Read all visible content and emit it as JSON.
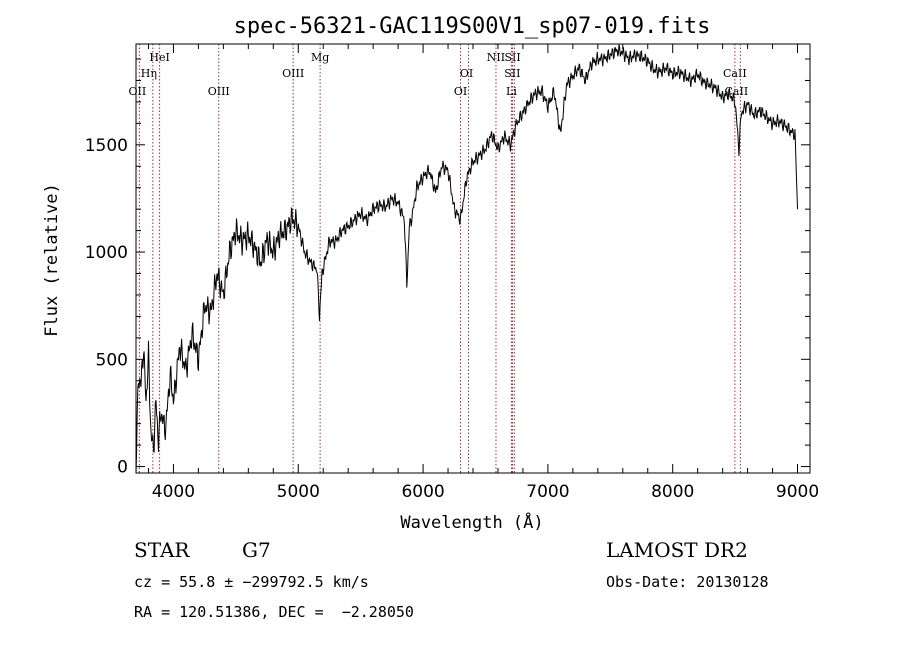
{
  "chart_data": {
    "type": "line",
    "title": "spec-56321-GAC119S00V1_sp07-019.fits",
    "xlabel": "Wavelength (Å)",
    "ylabel": "Flux (relative)",
    "xlim": [
      3700,
      9100
    ],
    "ylim": [
      -30,
      1970
    ],
    "x_ticks": [
      4000,
      5000,
      6000,
      7000,
      8000,
      9000
    ],
    "y_ticks": [
      0,
      500,
      1000,
      1500
    ],
    "grid": false,
    "series": [
      {
        "x": [
          3700,
          3720,
          3740,
          3760,
          3780,
          3800,
          3820,
          3840,
          3860,
          3880,
          3900,
          3920,
          3940,
          3960,
          3980,
          4000,
          4050,
          4100,
          4150,
          4200,
          4250,
          4300,
          4350,
          4400,
          4450,
          4500,
          4550,
          4600,
          4650,
          4700,
          4750,
          4800,
          4850,
          4900,
          4950,
          5000,
          5050,
          5100,
          5150,
          5170,
          5190,
          5210,
          5250,
          5300,
          5350,
          5400,
          5450,
          5500,
          5550,
          5600,
          5650,
          5700,
          5750,
          5800,
          5850,
          5870,
          5890,
          5910,
          5950,
          6000,
          6050,
          6100,
          6150,
          6200,
          6250,
          6300,
          6350,
          6400,
          6450,
          6500,
          6550,
          6600,
          6650,
          6700,
          6750,
          6800,
          6850,
          6900,
          6950,
          7000,
          7050,
          7100,
          7150,
          7200,
          7250,
          7300,
          7350,
          7400,
          7450,
          7500,
          7550,
          7600,
          7650,
          7700,
          7750,
          7800,
          7850,
          7900,
          7950,
          8000,
          8050,
          8100,
          8150,
          8200,
          8250,
          8300,
          8350,
          8400,
          8450,
          8500,
          8530,
          8550,
          8600,
          8650,
          8700,
          8750,
          8800,
          8850,
          8900,
          8950,
          8980,
          9000
        ],
        "y": [
          0,
          420,
          380,
          560,
          300,
          520,
          150,
          80,
          300,
          120,
          260,
          200,
          180,
          350,
          420,
          300,
          560,
          450,
          620,
          500,
          750,
          720,
          900,
          800,
          1000,
          1100,
          1050,
          1080,
          1020,
          950,
          1060,
          1000,
          1080,
          1100,
          1160,
          1120,
          1000,
          950,
          920,
          700,
          900,
          950,
          1050,
          1050,
          1100,
          1120,
          1150,
          1180,
          1150,
          1200,
          1220,
          1210,
          1250,
          1230,
          1150,
          850,
          1120,
          1160,
          1300,
          1350,
          1380,
          1280,
          1400,
          1380,
          1200,
          1150,
          1350,
          1420,
          1450,
          1480,
          1550,
          1480,
          1540,
          1500,
          1600,
          1650,
          1700,
          1740,
          1750,
          1680,
          1750,
          1550,
          1780,
          1820,
          1860,
          1800,
          1880,
          1900,
          1900,
          1920,
          1940,
          1930,
          1900,
          1920,
          1910,
          1890,
          1850,
          1840,
          1860,
          1830,
          1840,
          1820,
          1800,
          1830,
          1790,
          1780,
          1760,
          1720,
          1740,
          1700,
          1480,
          1650,
          1690,
          1640,
          1660,
          1630,
          1600,
          1610,
          1590,
          1560,
          1550,
          1200
        ]
      }
    ],
    "line_markers": [
      {
        "label": "OII",
        "x": 3727,
        "tier": 3,
        "dx": -2
      },
      {
        "label": "Hη",
        "x": 3835,
        "tier": 2,
        "dx": -4
      },
      {
        "label": "HeI",
        "x": 3889,
        "tier": 1,
        "dx": 0
      },
      {
        "label": "OIII",
        "x": 4363,
        "tier": 3,
        "dx": 0
      },
      {
        "label": "OIII",
        "x": 4959,
        "tier": 2,
        "dx": 0
      },
      {
        "label": "Mg",
        "x": 5175,
        "tier": 1,
        "dx": 0
      },
      {
        "label": "OI",
        "x": 6300,
        "tier": 3,
        "dx": 0
      },
      {
        "label": "OI",
        "x": 6364,
        "tier": 2,
        "dx": -2
      },
      {
        "label": "NII",
        "x": 6584,
        "tier": 1,
        "dx": 0
      },
      {
        "label": "SII",
        "x": 6717,
        "tier": 1,
        "dx": 0
      },
      {
        "label": "SII",
        "x": 6731,
        "tier": 2,
        "dx": -2
      },
      {
        "label": "Li",
        "x": 6708,
        "tier": 3,
        "dx": 0
      },
      {
        "label": "CaII",
        "x": 8498,
        "tier": 2,
        "dx": 0
      },
      {
        "label": "CaII",
        "x": 8542,
        "tier": 3,
        "dx": -4
      }
    ]
  },
  "info": {
    "object_class": "STAR",
    "subclass": "G7",
    "survey": "LAMOST DR2",
    "redshift_line": "cz = 55.8 ± −299792.5 km/s",
    "obs_date": "Obs-Date: 20130128",
    "coords": "RA = 120.51386, DEC =  −2.28050"
  },
  "colors": {
    "line": "#000000",
    "marker": "#a0303a",
    "background": "#ffffff"
  }
}
